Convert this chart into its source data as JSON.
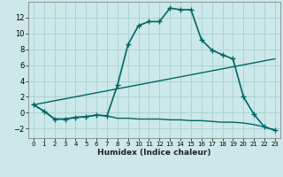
{
  "xlabel": "Humidex (Indice chaleur)",
  "bg_color": "#cce8e8",
  "grid_color": "#aad4d4",
  "line_color": "#006666",
  "xlim": [
    -0.5,
    23.5
  ],
  "ylim": [
    -3.2,
    14.0
  ],
  "xticks": [
    0,
    1,
    2,
    3,
    4,
    5,
    6,
    7,
    8,
    9,
    10,
    11,
    12,
    13,
    14,
    15,
    16,
    17,
    18,
    19,
    20,
    21,
    22,
    23
  ],
  "yticks": [
    -2,
    0,
    2,
    4,
    6,
    8,
    10,
    12
  ],
  "line1_x": [
    0,
    1,
    2,
    3,
    4,
    5,
    6,
    7,
    8,
    9,
    10,
    11,
    12,
    13,
    14,
    15,
    16,
    17,
    18,
    19,
    20,
    21,
    22,
    23
  ],
  "line1_y": [
    1.0,
    0.2,
    -0.8,
    -0.8,
    -0.6,
    -0.5,
    -0.3,
    -0.4,
    3.5,
    8.6,
    11.0,
    11.5,
    11.5,
    13.2,
    13.0,
    13.0,
    9.2,
    7.9,
    7.3,
    6.8,
    2.0,
    -0.2,
    -1.8,
    -2.2
  ],
  "line2_x": [
    0,
    1,
    2,
    3,
    4,
    5,
    6,
    7,
    8,
    9,
    10,
    11,
    12,
    13,
    14,
    15,
    16,
    17,
    18,
    19,
    20,
    21,
    22,
    23
  ],
  "line2_y": [
    1.0,
    0.2,
    -0.8,
    -0.8,
    -0.6,
    -0.5,
    -0.3,
    -0.4,
    -0.7,
    -0.7,
    -0.8,
    -0.8,
    -0.8,
    -0.9,
    -0.9,
    -1.0,
    -1.0,
    -1.1,
    -1.2,
    -1.2,
    -1.3,
    -1.5,
    -1.8,
    -2.2
  ],
  "line3_x": [
    0,
    23
  ],
  "line3_y": [
    1.0,
    6.8
  ]
}
